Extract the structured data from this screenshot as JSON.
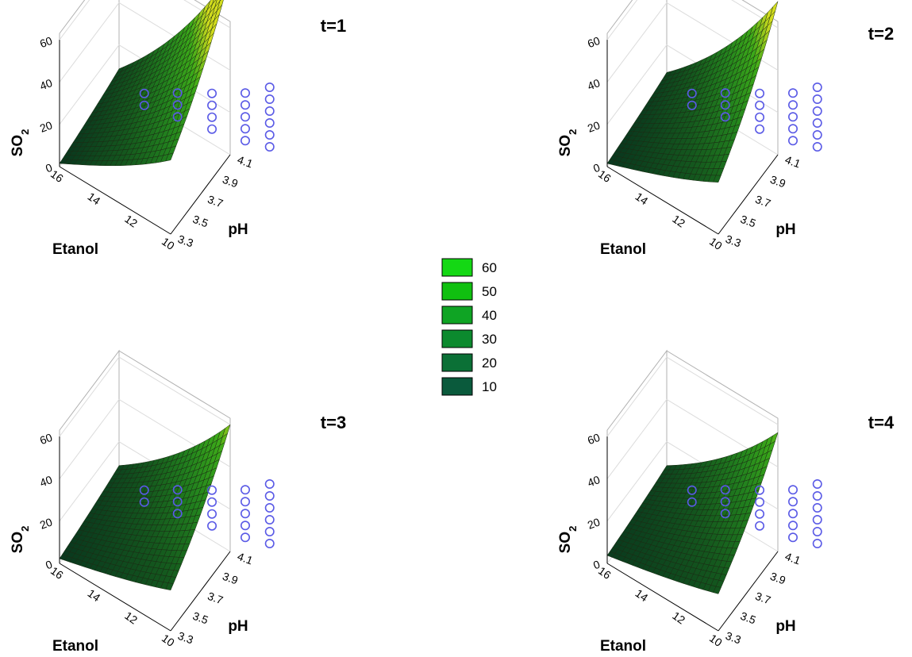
{
  "chart_data": [
    {
      "type": "surface3d",
      "title": "t=1",
      "xlabel": "Etanol",
      "ylabel": "pH",
      "zlabel": "SO2",
      "x_ticks": [
        "16",
        "14",
        "12",
        "10"
      ],
      "y_ticks": [
        "3.3",
        "3.5",
        "3.7",
        "3.9",
        "4.1"
      ],
      "z_ticks": [
        "0",
        "20",
        "40",
        "60"
      ],
      "xlim": [
        10,
        16
      ],
      "ylim": [
        3.3,
        4.1
      ],
      "zlim": [
        0,
        60
      ],
      "corner_values": {
        "e10_ph3.3": 40,
        "e10_ph4.1": 68,
        "e16_ph3.3": 2,
        "e16_ph4.1": 10
      }
    },
    {
      "type": "surface3d",
      "title": "t=2",
      "xlabel": "Etanol",
      "ylabel": "pH",
      "zlabel": "SO2",
      "x_ticks": [
        "16",
        "14",
        "12",
        "10"
      ],
      "y_ticks": [
        "3.3",
        "3.5",
        "3.7",
        "3.9",
        "4.1"
      ],
      "z_ticks": [
        "0",
        "20",
        "40",
        "60"
      ],
      "xlim": [
        10,
        16
      ],
      "ylim": [
        3.3,
        4.1
      ],
      "zlim": [
        0,
        60
      ],
      "corner_values": {
        "e10_ph3.3": 28,
        "e10_ph4.1": 58,
        "e16_ph3.3": 2,
        "e16_ph4.1": 8
      }
    },
    {
      "type": "surface3d",
      "title": "t=3",
      "xlabel": "Etanol",
      "ylabel": "pH",
      "zlabel": "SO2",
      "x_ticks": [
        "16",
        "14",
        "12",
        "10"
      ],
      "y_ticks": [
        "3.3",
        "3.5",
        "3.7",
        "3.9",
        "4.1"
      ],
      "z_ticks": [
        "0",
        "20",
        "40",
        "60"
      ],
      "xlim": [
        10,
        16
      ],
      "ylim": [
        3.3,
        4.1
      ],
      "zlim": [
        0,
        60
      ],
      "corner_values": {
        "e10_ph3.3": 22,
        "e10_ph4.1": 48,
        "e16_ph3.3": 3,
        "e16_ph4.1": 10
      }
    },
    {
      "type": "surface3d",
      "title": "t=4",
      "xlabel": "Etanol",
      "ylabel": "pH",
      "zlabel": "SO2",
      "x_ticks": [
        "16",
        "14",
        "12",
        "10"
      ],
      "y_ticks": [
        "3.3",
        "3.5",
        "3.7",
        "3.9",
        "4.1"
      ],
      "z_ticks": [
        "0",
        "20",
        "40",
        "60"
      ],
      "xlim": [
        10,
        16
      ],
      "ylim": [
        3.3,
        4.1
      ],
      "zlim": [
        0,
        60
      ],
      "corner_values": {
        "e10_ph3.3": 20,
        "e10_ph4.1": 45,
        "e16_ph3.3": 5,
        "e16_ph4.1": 10
      }
    }
  ],
  "legend": {
    "items": [
      {
        "label": "60",
        "color": "#14d814"
      },
      {
        "label": "50",
        "color": "#10c010"
      },
      {
        "label": "40",
        "color": "#0fa424"
      },
      {
        "label": "30",
        "color": "#0c8a2e"
      },
      {
        "label": "20",
        "color": "#0b7036"
      },
      {
        "label": "10",
        "color": "#0a5a3c"
      }
    ]
  },
  "observed_marker_color": "#5a5ae6"
}
